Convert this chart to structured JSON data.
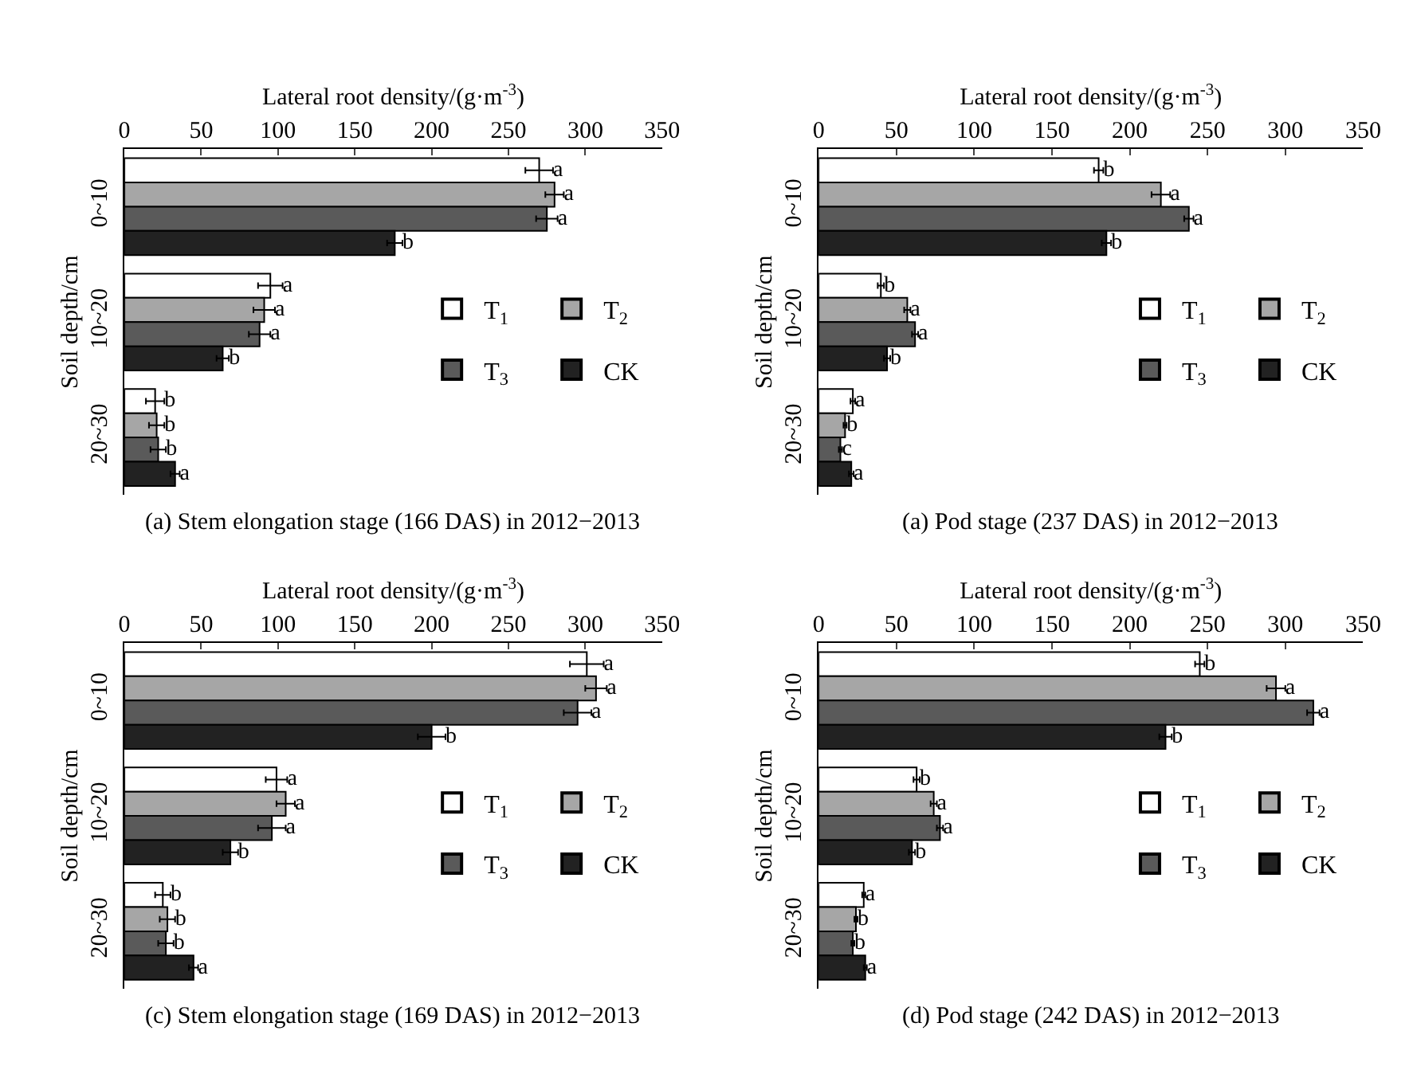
{
  "chart_data": [
    {
      "type": "bar",
      "orientation": "horizontal",
      "title": "(a) Stem elongation stage (166 DAS) in 2012−2013",
      "xlabel": "Lateral root density/(g·m$^{-3}$)",
      "ylabel": "Soil depth/cm",
      "categories": [
        "0~10",
        "10~20",
        "20~30"
      ],
      "xlim": [
        0,
        350
      ],
      "xticks": [
        0,
        50,
        100,
        150,
        200,
        250,
        300,
        350
      ],
      "legend": "right",
      "series": [
        {
          "name": "T$_{1}$",
          "color": "#ffffff",
          "values": [
            270,
            95,
            20
          ],
          "errors": [
            9,
            8,
            6
          ],
          "value_labels": [
            "a",
            "a",
            "b"
          ]
        },
        {
          "name": "T$_{2}$",
          "color": "#a6a6a6",
          "values": [
            280,
            91,
            21
          ],
          "errors": [
            6,
            7,
            5
          ],
          "value_labels": [
            "a",
            "a",
            "b"
          ]
        },
        {
          "name": "T$_{3}$",
          "color": "#5a5a5a",
          "values": [
            275,
            88,
            22
          ],
          "errors": [
            7,
            7,
            5
          ],
          "value_labels": [
            "a",
            "a",
            "b"
          ]
        },
        {
          "name": "CK",
          "color": "#222222",
          "values": [
            176,
            64,
            33
          ],
          "errors": [
            5,
            4,
            3
          ],
          "value_labels": [
            "b",
            "b",
            "a"
          ]
        }
      ]
    },
    {
      "type": "bar",
      "orientation": "horizontal",
      "title": "(a) Pod stage (237 DAS) in 2012−2013",
      "xlabel": "Lateral root density/(g·m$^{-3}$)",
      "ylabel": "Soil depth/cm",
      "categories": [
        "0~10",
        "10~20",
        "20~30"
      ],
      "xlim": [
        0,
        350
      ],
      "xticks": [
        0,
        50,
        100,
        150,
        200,
        250,
        300,
        350
      ],
      "legend": "right",
      "series": [
        {
          "name": "T$_{1}$",
          "color": "#ffffff",
          "values": [
            180,
            40,
            22
          ],
          "errors": [
            3,
            2,
            1.5
          ],
          "value_labels": [
            "b",
            "b",
            "a"
          ]
        },
        {
          "name": "T$_{2}$",
          "color": "#a6a6a6",
          "values": [
            220,
            57,
            17
          ],
          "errors": [
            6,
            2,
            1
          ],
          "value_labels": [
            "a",
            "a",
            "b"
          ]
        },
        {
          "name": "T$_{3}$",
          "color": "#5a5a5a",
          "values": [
            238,
            62,
            14
          ],
          "errors": [
            3,
            2,
            1
          ],
          "value_labels": [
            "a",
            "a",
            "c"
          ]
        },
        {
          "name": "CK",
          "color": "#222222",
          "values": [
            185,
            44,
            21
          ],
          "errors": [
            3,
            2,
            1.5
          ],
          "value_labels": [
            "b",
            "b",
            "a"
          ]
        }
      ]
    },
    {
      "type": "bar",
      "orientation": "horizontal",
      "title": "(c) Stem elongation stage (169 DAS) in 2012−2013",
      "xlabel": "Lateral root density/(g·m$^{-3}$)",
      "ylabel": "Soil depth/cm",
      "categories": [
        "0~10",
        "10~20",
        "20~30"
      ],
      "xlim": [
        0,
        350
      ],
      "xticks": [
        0,
        50,
        100,
        150,
        200,
        250,
        300,
        350
      ],
      "legend": "right",
      "series": [
        {
          "name": "T$_{1}$",
          "color": "#ffffff",
          "values": [
            301,
            99,
            25
          ],
          "errors": [
            11,
            7,
            5
          ],
          "value_labels": [
            "a",
            "a",
            "b"
          ]
        },
        {
          "name": "T$_{2}$",
          "color": "#a6a6a6",
          "values": [
            307,
            105,
            28
          ],
          "errors": [
            7,
            6,
            5
          ],
          "value_labels": [
            "a",
            "a",
            "b"
          ]
        },
        {
          "name": "T$_{3}$",
          "color": "#5a5a5a",
          "values": [
            295,
            96,
            27
          ],
          "errors": [
            9,
            9,
            5
          ],
          "value_labels": [
            "a",
            "a",
            "b"
          ]
        },
        {
          "name": "CK",
          "color": "#222222",
          "values": [
            200,
            69,
            45
          ],
          "errors": [
            9,
            5,
            3
          ],
          "value_labels": [
            "b",
            "b",
            "a"
          ]
        }
      ]
    },
    {
      "type": "bar",
      "orientation": "horizontal",
      "title": "(d) Pod stage (242 DAS) in 2012−2013",
      "xlabel": "Lateral root density/(g·m$^{-3}$)",
      "ylabel": "Soil depth/cm",
      "categories": [
        "0~10",
        "10~20",
        "20~30"
      ],
      "xlim": [
        0,
        350
      ],
      "xticks": [
        0,
        50,
        100,
        150,
        200,
        250,
        300,
        350
      ],
      "legend": "right",
      "series": [
        {
          "name": "T$_{1}$",
          "color": "#ffffff",
          "values": [
            245,
            63,
            29
          ],
          "errors": [
            3,
            2,
            1
          ],
          "value_labels": [
            "b",
            "b",
            "a"
          ]
        },
        {
          "name": "T$_{2}$",
          "color": "#a6a6a6",
          "values": [
            294,
            74,
            24
          ],
          "errors": [
            6,
            2,
            1
          ],
          "value_labels": [
            "a",
            "a",
            "b"
          ]
        },
        {
          "name": "T$_{3}$",
          "color": "#5a5a5a",
          "values": [
            318,
            78,
            22
          ],
          "errors": [
            4,
            2,
            1
          ],
          "value_labels": [
            "a",
            "a",
            "b"
          ]
        },
        {
          "name": "CK",
          "color": "#222222",
          "values": [
            223,
            60,
            30
          ],
          "errors": [
            4,
            2,
            1
          ],
          "value_labels": [
            "b",
            "b",
            "a"
          ]
        }
      ]
    }
  ]
}
